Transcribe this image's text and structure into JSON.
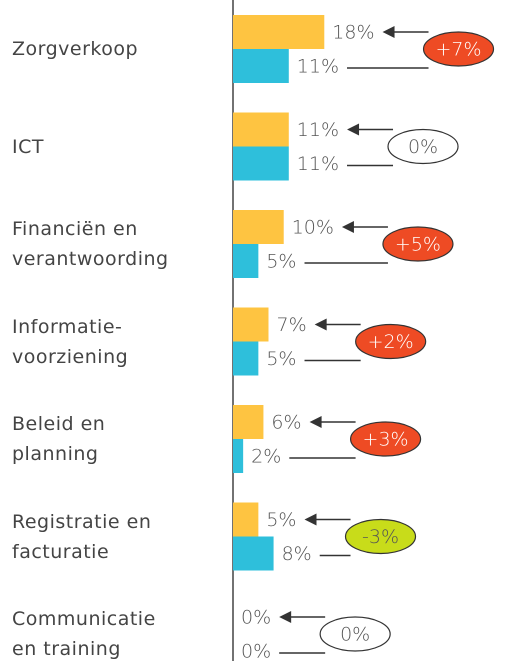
{
  "chart_data": {
    "type": "bar",
    "categories": [
      "Zorgverkoop",
      "ICT",
      "Financiën en\nverantwoording",
      "Informatie-\nvoorziening",
      "Beleid en\nplanning",
      "Registratie en\nfacturatie",
      "Communicatie\nen training"
    ],
    "series": [
      {
        "color": "#fec441",
        "values": [
          18,
          11,
          10,
          7,
          6,
          5,
          0
        ],
        "value_labels": [
          "18%",
          "11%",
          "10%",
          "7%",
          "6%",
          "5%",
          "0%"
        ]
      },
      {
        "color": "#2ebfdb",
        "values": [
          11,
          11,
          5,
          5,
          2,
          8,
          0
        ],
        "value_labels": [
          "11%",
          "11%",
          "5%",
          "5%",
          "2%",
          "8%",
          "0%"
        ]
      }
    ],
    "changes": {
      "values": [
        7,
        0,
        5,
        2,
        3,
        -3,
        0
      ],
      "value_labels": [
        "+7%",
        "0%",
        "+5%",
        "+2%",
        "+3%",
        "-3%",
        "0%"
      ],
      "colors": [
        "#ee4b24",
        "#ffffff",
        "#ee4b24",
        "#ee4b24",
        "#ee4b24",
        "#c8dc1a",
        "#ffffff"
      ]
    },
    "xlim": [
      0,
      56
    ]
  }
}
